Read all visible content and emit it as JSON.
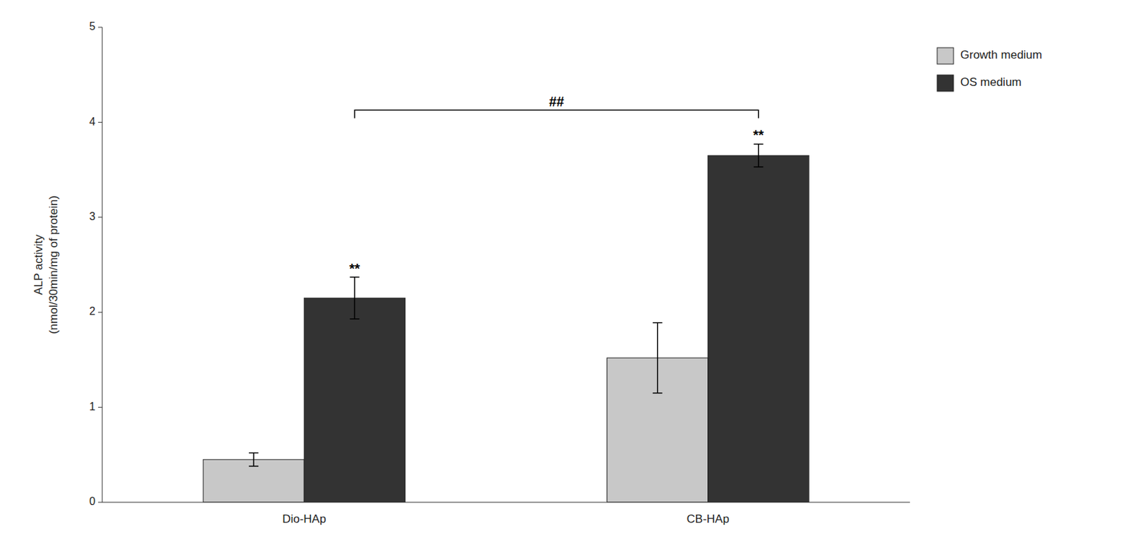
{
  "chart_data": {
    "type": "bar",
    "categories": [
      "Dio-HAp",
      "CB-HAp"
    ],
    "series": [
      {
        "name": "Growth medium",
        "color": "#c8c8c8",
        "values": [
          0.45,
          1.52
        ],
        "errors": [
          0.07,
          0.37
        ]
      },
      {
        "name": "OS medium",
        "color": "#333333",
        "values": [
          2.15,
          3.65
        ],
        "errors": [
          0.22,
          0.12
        ]
      }
    ],
    "ylabel": "ALP activity\n(nmol/30min/mg of protein)",
    "ylim": [
      0,
      5
    ],
    "yticks": [
      0,
      1,
      2,
      3,
      4,
      5
    ],
    "grid": false,
    "legend": "right",
    "annotations": [
      {
        "text": "**",
        "category": "Dio-HAp",
        "series": "OS medium"
      },
      {
        "text": "**",
        "category": "CB-HAp",
        "series": "OS medium"
      },
      {
        "text": "##",
        "category": [
          "Dio-HAp",
          "CB-HAp"
        ],
        "series": "OS medium"
      }
    ]
  }
}
